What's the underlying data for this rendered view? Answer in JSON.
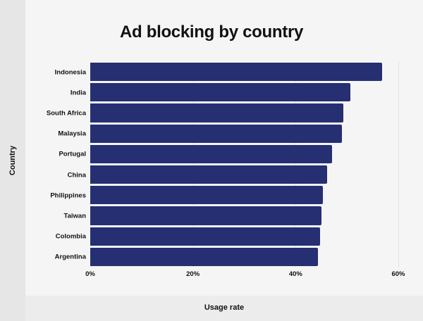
{
  "chart_data": {
    "type": "bar",
    "orientation": "horizontal",
    "title": "Ad blocking by country",
    "xlabel": "Usage rate",
    "ylabel": "Country",
    "categories": [
      "Indonesia",
      "India",
      "South Africa",
      "Malaysia",
      "Portugal",
      "China",
      "Philippines",
      "Taiwan",
      "Colombia",
      "Argentina"
    ],
    "values": [
      56.9,
      50.7,
      49.3,
      49.0,
      47.1,
      46.2,
      45.3,
      45.0,
      44.8,
      44.4
    ],
    "unit": "%",
    "xlim": [
      0,
      60
    ],
    "xticks": [
      "0%",
      "20%",
      "40%",
      "60%"
    ],
    "xtick_values": [
      0,
      20,
      40,
      60
    ],
    "grid": true,
    "legend": null,
    "bar_color": "#252f72"
  },
  "header": {
    "title": "Ad blocking by country"
  },
  "axes": {
    "x_title": "Usage rate",
    "y_title": "Country"
  }
}
